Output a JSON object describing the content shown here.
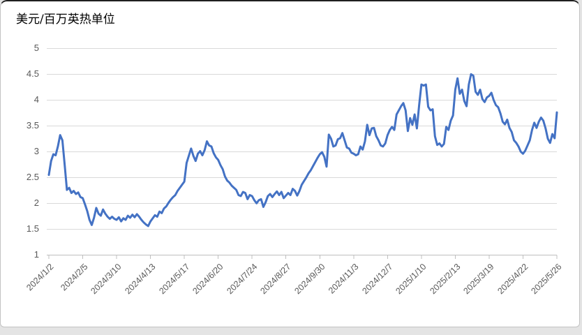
{
  "chart_data": {
    "type": "line",
    "title": "美元/百万英热单位",
    "x_tick_labels": [
      "2024/1/2",
      "2024/2/5",
      "2024/3/10",
      "2024/4/13",
      "2024/5/17",
      "2024/6/20",
      "2024/7/24",
      "2024/8/27",
      "2024/9/30",
      "2024/11/3",
      "2024/12/7",
      "2025/1/10",
      "2025/2/13",
      "2025/3/19",
      "2025/4/22",
      "2025/5/26"
    ],
    "y_tick_labels": [
      "5",
      "4.5",
      "4",
      "3.5",
      "3",
      "2.5",
      "2",
      "1.5",
      "1"
    ],
    "ylim": [
      1,
      5
    ],
    "y_step": 0.5,
    "grid": true,
    "legend": false,
    "points_per_tick": 15,
    "series": [
      {
        "name": "美元/百万英热单位",
        "color": "#4472C4",
        "values": [
          2.55,
          2.82,
          2.95,
          2.93,
          3.1,
          3.32,
          3.22,
          2.75,
          2.26,
          2.3,
          2.2,
          2.24,
          2.18,
          2.21,
          2.12,
          2.1,
          1.98,
          1.85,
          1.68,
          1.58,
          1.72,
          1.91,
          1.8,
          1.76,
          1.88,
          1.8,
          1.74,
          1.7,
          1.74,
          1.7,
          1.68,
          1.73,
          1.65,
          1.71,
          1.68,
          1.76,
          1.72,
          1.78,
          1.73,
          1.79,
          1.74,
          1.68,
          1.63,
          1.59,
          1.56,
          1.65,
          1.71,
          1.77,
          1.74,
          1.84,
          1.81,
          1.9,
          1.94,
          2.01,
          2.07,
          2.12,
          2.16,
          2.24,
          2.3,
          2.36,
          2.42,
          2.78,
          2.92,
          3.06,
          2.92,
          2.82,
          2.96,
          3.01,
          2.93,
          3.03,
          3.2,
          3.12,
          3.1,
          2.97,
          2.89,
          2.84,
          2.74,
          2.66,
          2.52,
          2.44,
          2.4,
          2.34,
          2.3,
          2.26,
          2.16,
          2.14,
          2.22,
          2.2,
          2.08,
          2.16,
          2.14,
          2.06,
          2.0,
          2.06,
          2.08,
          1.93,
          2.02,
          2.14,
          2.18,
          2.12,
          2.18,
          2.23,
          2.16,
          2.22,
          2.1,
          2.15,
          2.2,
          2.16,
          2.28,
          2.24,
          2.15,
          2.24,
          2.36,
          2.43,
          2.5,
          2.58,
          2.64,
          2.72,
          2.8,
          2.88,
          2.95,
          2.99,
          2.9,
          2.71,
          3.33,
          3.25,
          3.1,
          3.12,
          3.24,
          3.26,
          3.36,
          3.22,
          3.08,
          3.06,
          2.98,
          2.96,
          2.93,
          2.95,
          3.1,
          3.04,
          3.2,
          3.52,
          3.32,
          3.45,
          3.46,
          3.3,
          3.22,
          3.12,
          3.1,
          3.16,
          3.32,
          3.42,
          3.48,
          3.42,
          3.72,
          3.8,
          3.88,
          3.94,
          3.8,
          3.4,
          3.65,
          3.52,
          3.72,
          3.45,
          3.9,
          4.3,
          4.28,
          4.3,
          3.87,
          3.8,
          3.82,
          3.3,
          3.13,
          3.16,
          3.1,
          3.15,
          3.48,
          3.42,
          3.6,
          3.7,
          4.2,
          4.42,
          4.12,
          4.2,
          3.98,
          3.88,
          4.3,
          4.5,
          4.47,
          4.16,
          4.1,
          4.2,
          4.02,
          3.96,
          4.05,
          4.08,
          4.14,
          4.0,
          3.9,
          3.86,
          3.74,
          3.58,
          3.53,
          3.62,
          3.46,
          3.38,
          3.22,
          3.17,
          3.1,
          3.0,
          2.96,
          3.02,
          3.12,
          3.22,
          3.42,
          3.56,
          3.46,
          3.58,
          3.66,
          3.6,
          3.45,
          3.25,
          3.17,
          3.34,
          3.26,
          3.76
        ]
      }
    ]
  },
  "style": {
    "line_color": "#4472C4",
    "grid_color": "#d9d9d9",
    "axis_color": "#bfbfbf",
    "label_color": "#595959",
    "title_color": "#000000",
    "plot_background": "#ffffff",
    "frame_color": "#c2c2c2",
    "top_edge_color": "#1f1f1f",
    "page_background": "#e4e4e4"
  }
}
